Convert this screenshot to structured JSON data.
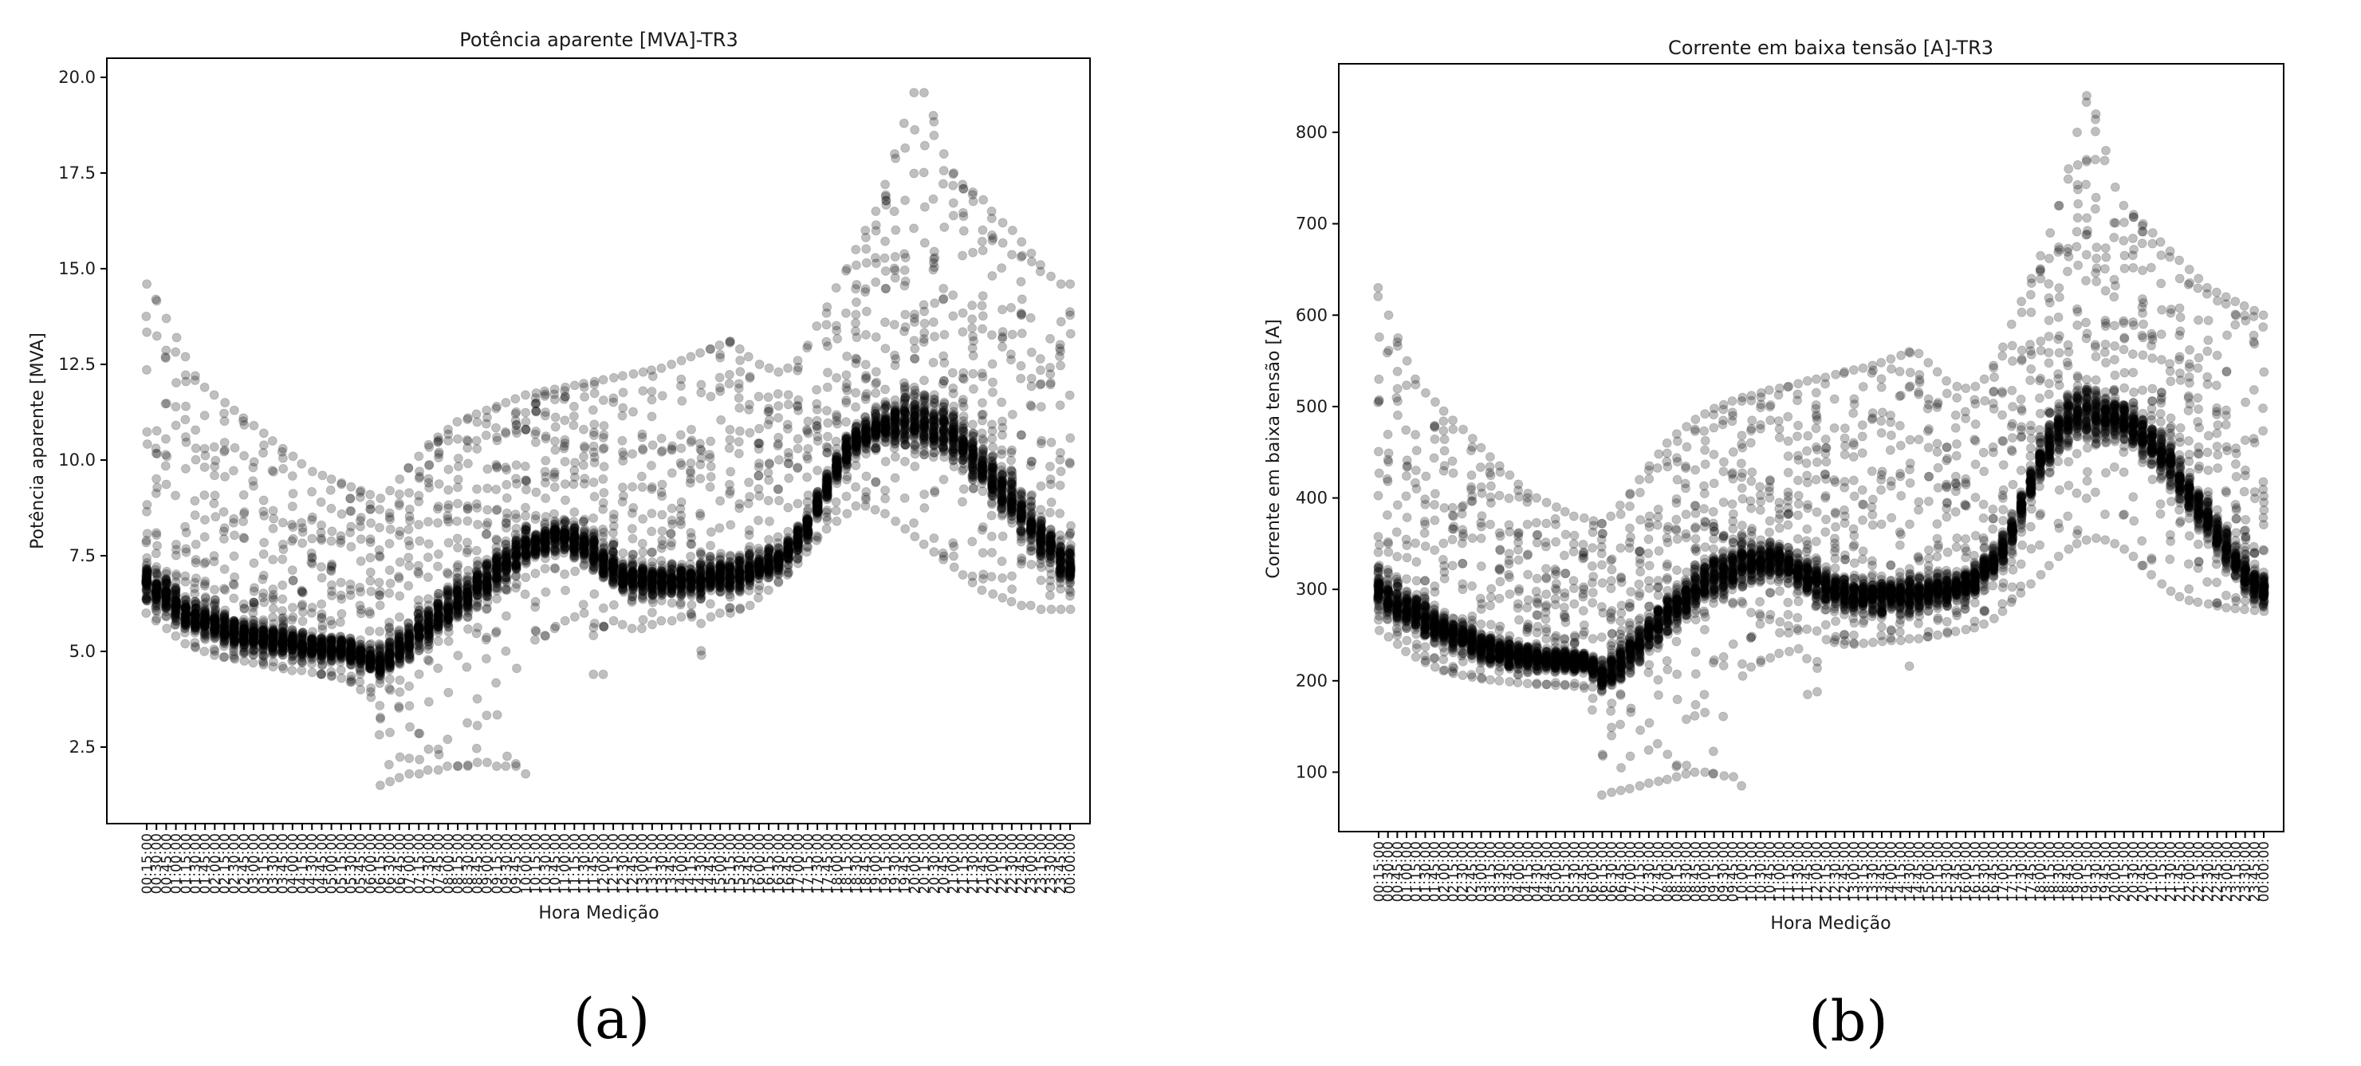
{
  "chart_data": [
    {
      "type": "scatter",
      "title": "Potência aparente [MVA]-TR3",
      "xlabel": "Hora Medição",
      "ylabel": "Potência aparente [MVA]",
      "panel_label": "(a)",
      "ylim": [
        0.5,
        20.5
      ],
      "yticks": [
        2.5,
        5.0,
        7.5,
        10.0,
        12.5,
        15.0,
        17.5,
        20.0
      ],
      "ytick_labels": [
        "2.5",
        "5.0",
        "7.5",
        "10.0",
        "12.5",
        "15.0",
        "17.5",
        "20.0"
      ],
      "grid": false,
      "marker_color": "#000000",
      "marker_alpha": 0.25,
      "x": [
        "00:15:00",
        "00:30:00",
        "00:45:00",
        "01:00:00",
        "01:15:00",
        "01:30:00",
        "01:45:00",
        "02:00:00",
        "02:15:00",
        "02:30:00",
        "02:45:00",
        "03:00:00",
        "03:15:00",
        "03:30:00",
        "03:45:00",
        "04:00:00",
        "04:15:00",
        "04:30:00",
        "04:45:00",
        "05:00:00",
        "05:15:00",
        "05:30:00",
        "05:45:00",
        "06:00:00",
        "06:15:00",
        "06:30:00",
        "06:45:00",
        "07:00:00",
        "07:15:00",
        "07:30:00",
        "07:45:00",
        "08:00:00",
        "08:15:00",
        "08:30:00",
        "08:45:00",
        "09:00:00",
        "09:15:00",
        "09:30:00",
        "09:45:00",
        "10:00:00",
        "10:15:00",
        "10:30:00",
        "10:45:00",
        "11:00:00",
        "11:15:00",
        "11:30:00",
        "11:45:00",
        "12:00:00",
        "12:15:00",
        "12:30:00",
        "12:45:00",
        "13:00:00",
        "13:15:00",
        "13:30:00",
        "13:45:00",
        "14:00:00",
        "14:15:00",
        "14:30:00",
        "14:45:00",
        "15:00:00",
        "15:15:00",
        "15:30:00",
        "15:45:00",
        "16:00:00",
        "16:15:00",
        "16:30:00",
        "16:45:00",
        "17:00:00",
        "17:15:00",
        "17:30:00",
        "17:45:00",
        "18:00:00",
        "18:15:00",
        "18:30:00",
        "18:45:00",
        "19:00:00",
        "19:15:00",
        "19:30:00",
        "19:45:00",
        "20:00:00",
        "20:15:00",
        "20:30:00",
        "20:45:00",
        "21:00:00",
        "21:15:00",
        "21:30:00",
        "21:45:00",
        "22:00:00",
        "22:15:00",
        "22:30:00",
        "22:45:00",
        "23:00:00",
        "23:15:00",
        "23:30:00",
        "23:45:00",
        "00:00:00"
      ],
      "y_typical": [
        6.8,
        6.6,
        6.4,
        6.2,
        6.0,
        5.9,
        5.8,
        5.7,
        5.6,
        5.5,
        5.45,
        5.4,
        5.35,
        5.3,
        5.25,
        5.2,
        5.15,
        5.1,
        5.1,
        5.1,
        5.05,
        5.0,
        4.9,
        4.8,
        4.7,
        4.9,
        5.1,
        5.3,
        5.5,
        5.7,
        5.9,
        6.1,
        6.3,
        6.5,
        6.7,
        6.9,
        7.1,
        7.3,
        7.5,
        7.7,
        7.8,
        7.9,
        8.0,
        8.0,
        7.9,
        7.8,
        7.6,
        7.4,
        7.2,
        7.0,
        6.9,
        6.85,
        6.8,
        6.8,
        6.8,
        6.85,
        6.9,
        6.9,
        6.95,
        7.0,
        7.0,
        7.05,
        7.1,
        7.2,
        7.3,
        7.4,
        7.6,
        7.9,
        8.3,
        8.8,
        9.3,
        9.8,
        10.2,
        10.5,
        10.7,
        10.8,
        10.9,
        10.95,
        11.0,
        11.0,
        11.0,
        10.9,
        10.8,
        10.6,
        10.4,
        10.1,
        9.8,
        9.5,
        9.2,
        8.9,
        8.6,
        8.3,
        8.0,
        7.7,
        7.4,
        7.2
      ],
      "y_upper": [
        14.6,
        14.2,
        13.7,
        13.2,
        12.7,
        12.2,
        11.9,
        11.7,
        11.5,
        11.3,
        11.1,
        10.9,
        10.7,
        10.5,
        10.3,
        10.1,
        9.9,
        9.7,
        9.6,
        9.5,
        9.4,
        9.3,
        9.2,
        9.1,
        9.0,
        9.2,
        9.5,
        9.8,
        10.1,
        10.4,
        10.6,
        10.8,
        11.0,
        11.1,
        11.2,
        11.3,
        11.4,
        11.5,
        11.6,
        11.7,
        11.75,
        11.8,
        11.85,
        11.9,
        11.95,
        12.0,
        12.05,
        12.1,
        12.15,
        12.2,
        12.25,
        12.3,
        12.35,
        12.4,
        12.5,
        12.6,
        12.7,
        12.8,
        12.9,
        13.0,
        13.1,
        12.9,
        12.7,
        12.5,
        12.4,
        12.3,
        12.4,
        12.6,
        13.0,
        13.5,
        14.0,
        14.5,
        15.0,
        15.5,
        16.0,
        16.5,
        17.2,
        18.0,
        18.8,
        19.6,
        19.6,
        19.0,
        18.0,
        17.5,
        17.2,
        17.0,
        16.8,
        16.5,
        16.2,
        16.0,
        15.7,
        15.4,
        15.1,
        14.8,
        14.6,
        14.6
      ],
      "y_lower": [
        6.0,
        5.8,
        5.6,
        5.4,
        5.2,
        5.1,
        5.0,
        4.9,
        4.85,
        4.8,
        4.75,
        4.7,
        4.65,
        4.6,
        4.55,
        4.5,
        4.5,
        4.45,
        4.4,
        4.35,
        4.3,
        4.2,
        4.0,
        3.8,
        1.5,
        1.6,
        1.7,
        1.8,
        1.8,
        1.9,
        1.9,
        2.0,
        2.0,
        2.0,
        2.1,
        2.1,
        2.0,
        2.0,
        2.0,
        1.8,
        5.3,
        5.4,
        5.6,
        5.8,
        5.9,
        6.0,
        4.4,
        4.4,
        5.8,
        5.7,
        5.6,
        5.6,
        5.7,
        5.8,
        5.8,
        5.9,
        5.9,
        4.9,
        5.9,
        6.0,
        6.0,
        6.1,
        6.2,
        6.4,
        6.6,
        6.8,
        7.0,
        7.3,
        7.6,
        7.9,
        8.2,
        8.4,
        8.6,
        8.8,
        8.8,
        8.7,
        8.6,
        8.4,
        8.2,
        8.0,
        7.8,
        7.6,
        7.4,
        7.2,
        7.0,
        6.8,
        6.6,
        6.5,
        6.4,
        6.3,
        6.2,
        6.2,
        6.1,
        6.1,
        6.1,
        6.1
      ]
    },
    {
      "type": "scatter",
      "title": "Corrente em baixa tensão [A]-TR3",
      "xlabel": "Hora Medição",
      "ylabel": "Corrente em baixa tensão [A]",
      "panel_label": "(b)",
      "ylim": [
        35,
        875
      ],
      "yticks": [
        100,
        200,
        300,
        400,
        500,
        600,
        700,
        800
      ],
      "ytick_labels": [
        "100",
        "200",
        "300",
        "400",
        "500",
        "600",
        "700",
        "800"
      ],
      "grid": false,
      "marker_color": "#000000",
      "marker_alpha": 0.25,
      "x": [
        "00:15:00",
        "00:30:00",
        "00:45:00",
        "01:00:00",
        "01:15:00",
        "01:30:00",
        "01:45:00",
        "02:00:00",
        "02:15:00",
        "02:30:00",
        "02:45:00",
        "03:00:00",
        "03:15:00",
        "03:30:00",
        "03:45:00",
        "04:00:00",
        "04:15:00",
        "04:30:00",
        "04:45:00",
        "05:00:00",
        "05:15:00",
        "05:30:00",
        "05:45:00",
        "06:00:00",
        "06:15:00",
        "06:30:00",
        "06:45:00",
        "07:00:00",
        "07:15:00",
        "07:30:00",
        "07:45:00",
        "08:00:00",
        "08:15:00",
        "08:30:00",
        "08:45:00",
        "09:00:00",
        "09:15:00",
        "09:30:00",
        "09:45:00",
        "10:00:00",
        "10:15:00",
        "10:30:00",
        "10:45:00",
        "11:00:00",
        "11:15:00",
        "11:30:00",
        "11:45:00",
        "12:00:00",
        "12:15:00",
        "12:30:00",
        "12:45:00",
        "13:00:00",
        "13:15:00",
        "13:30:00",
        "13:45:00",
        "14:00:00",
        "14:15:00",
        "14:30:00",
        "14:45:00",
        "15:00:00",
        "15:15:00",
        "15:30:00",
        "15:45:00",
        "16:00:00",
        "16:15:00",
        "16:30:00",
        "16:45:00",
        "17:00:00",
        "17:15:00",
        "17:30:00",
        "17:45:00",
        "18:00:00",
        "18:15:00",
        "18:30:00",
        "18:45:00",
        "19:00:00",
        "19:15:00",
        "19:30:00",
        "19:45:00",
        "20:00:00",
        "20:15:00",
        "20:30:00",
        "20:45:00",
        "21:00:00",
        "21:15:00",
        "21:30:00",
        "21:45:00",
        "22:00:00",
        "22:15:00",
        "22:30:00",
        "22:45:00",
        "23:00:00",
        "23:15:00",
        "23:30:00",
        "23:45:00",
        "00:00:00"
      ],
      "y_typical": [
        300,
        292,
        285,
        278,
        272,
        266,
        260,
        255,
        250,
        246,
        242,
        238,
        235,
        232,
        230,
        228,
        226,
        225,
        224,
        223,
        222,
        221,
        220,
        215,
        205,
        212,
        222,
        232,
        242,
        252,
        262,
        272,
        282,
        290,
        298,
        305,
        312,
        318,
        322,
        326,
        328,
        330,
        332,
        330,
        326,
        320,
        314,
        308,
        302,
        298,
        295,
        293,
        292,
        292,
        292,
        293,
        294,
        295,
        296,
        297,
        298,
        300,
        302,
        305,
        310,
        318,
        330,
        345,
        365,
        390,
        415,
        440,
        460,
        475,
        485,
        490,
        492,
        492,
        490,
        488,
        484,
        478,
        470,
        460,
        448,
        435,
        420,
        405,
        390,
        375,
        360,
        345,
        330,
        318,
        305,
        298
      ],
      "y_upper": [
        630,
        600,
        575,
        550,
        530,
        515,
        505,
        495,
        485,
        475,
        465,
        455,
        445,
        435,
        425,
        415,
        405,
        400,
        395,
        390,
        385,
        380,
        378,
        375,
        372,
        380,
        392,
        405,
        420,
        435,
        448,
        460,
        470,
        478,
        486,
        492,
        498,
        502,
        506,
        510,
        512,
        515,
        518,
        520,
        522,
        525,
        528,
        530,
        532,
        535,
        538,
        540,
        542,
        545,
        548,
        552,
        556,
        560,
        558,
        548,
        538,
        528,
        522,
        520,
        522,
        530,
        545,
        565,
        590,
        615,
        640,
        665,
        690,
        720,
        760,
        800,
        840,
        820,
        780,
        740,
        720,
        710,
        700,
        690,
        680,
        670,
        660,
        650,
        640,
        630,
        625,
        620,
        615,
        610,
        605,
        600
      ],
      "y_lower": [
        255,
        248,
        240,
        232,
        226,
        220,
        215,
        211,
        208,
        206,
        204,
        202,
        201,
        200,
        199,
        198,
        197,
        196,
        196,
        195,
        195,
        194,
        192,
        168,
        75,
        78,
        80,
        82,
        85,
        88,
        90,
        92,
        95,
        98,
        100,
        100,
        98,
        96,
        95,
        85,
        215,
        220,
        225,
        230,
        232,
        235,
        185,
        188,
        245,
        242,
        240,
        240,
        241,
        242,
        243,
        244,
        244,
        216,
        246,
        248,
        250,
        252,
        254,
        256,
        258,
        262,
        268,
        276,
        286,
        296,
        306,
        316,
        326,
        336,
        344,
        350,
        354,
        356,
        354,
        350,
        344,
        336,
        326,
        316,
        306,
        298,
        292,
        288,
        286,
        284,
        282,
        280,
        279,
        278,
        277,
        276
      ]
    }
  ]
}
